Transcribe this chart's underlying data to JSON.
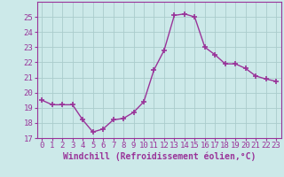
{
  "x": [
    0,
    1,
    2,
    3,
    4,
    5,
    6,
    7,
    8,
    9,
    10,
    11,
    12,
    13,
    14,
    15,
    16,
    17,
    18,
    19,
    20,
    21,
    22,
    23
  ],
  "y": [
    19.5,
    19.2,
    19.2,
    19.2,
    18.2,
    17.4,
    17.6,
    18.2,
    18.3,
    18.7,
    19.4,
    21.5,
    22.8,
    25.1,
    25.2,
    25.0,
    23.0,
    22.5,
    21.9,
    21.9,
    21.6,
    21.1,
    20.9,
    20.75
  ],
  "line_color": "#993399",
  "marker": "+",
  "marker_size": 5,
  "xlabel": "Windchill (Refroidissement éolien,°C)",
  "xlabel_fontsize": 7,
  "ylabel_ticks": [
    17,
    18,
    19,
    20,
    21,
    22,
    23,
    24,
    25
  ],
  "xtick_labels": [
    "0",
    "1",
    "2",
    "3",
    "4",
    "5",
    "6",
    "7",
    "8",
    "9",
    "10",
    "11",
    "12",
    "13",
    "14",
    "15",
    "16",
    "17",
    "18",
    "19",
    "20",
    "21",
    "22",
    "23"
  ],
  "ylim": [
    17,
    26
  ],
  "xlim": [
    -0.5,
    23.5
  ],
  "background_color": "#cce9e9",
  "grid_color": "#aacccc",
  "tick_color": "#993399",
  "label_color": "#993399",
  "tick_fontsize": 6.5
}
